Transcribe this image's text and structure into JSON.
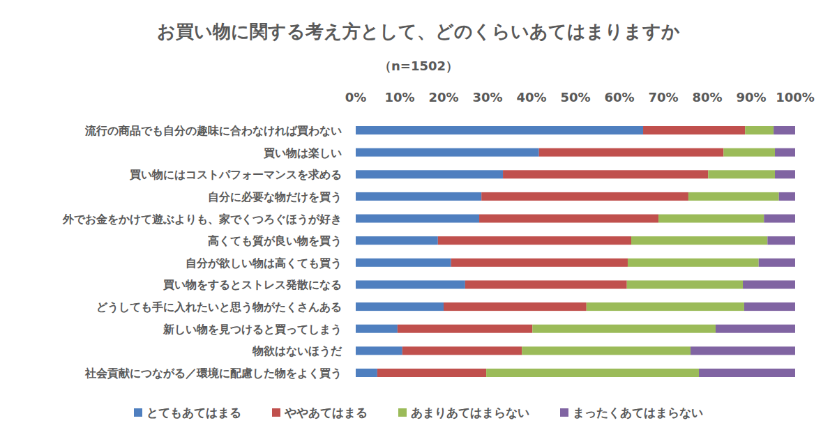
{
  "chart_data": {
    "type": "bar",
    "orientation": "horizontal",
    "stacked": true,
    "grid": false,
    "legend": "bottom",
    "data_labels": false,
    "title": "お買い物に関する考え方として、どのくらいあてはまりますか",
    "subtitle": "（n=1502）",
    "categories": [
      "流行の商品でも自分の趣味に合わなければ買わない",
      "買い物は楽しい",
      "買い物にはコストパフォーマンスを求める",
      "自分に必要な物だけを買う",
      "外でお金をかけて遊ぶよりも、家でくつろぐほうが好き",
      "高くても質が良い物を買う",
      "自分が欲しい物は高くても買う",
      "買い物をするとストレス発散になる",
      "どうしても手に入れたいと思う物がたくさんある",
      "新しい物を見つけると買ってしまう",
      "物欲はないほうだ",
      "社会貢献につながる／環境に配慮した物をよく買う"
    ],
    "xlim": [
      0,
      100
    ],
    "xticks": [
      {
        "value": 0,
        "label": "0%"
      },
      {
        "value": 10,
        "label": "10%"
      },
      {
        "value": 20,
        "label": "20%"
      },
      {
        "value": 30,
        "label": "30%"
      },
      {
        "value": 40,
        "label": "40%"
      },
      {
        "value": 50,
        "label": "50%"
      },
      {
        "value": 60,
        "label": "60%"
      },
      {
        "value": 70,
        "label": "70%"
      },
      {
        "value": 80,
        "label": "80%"
      },
      {
        "value": 90,
        "label": "90%"
      },
      {
        "value": 100,
        "label": "100%"
      }
    ],
    "series": [
      {
        "name": "とてもあてはまる",
        "color": "#4f7fbf",
        "values": [
          65.4,
          41.7,
          33.5,
          28.6,
          28.1,
          18.7,
          21.7,
          24.9,
          20.0,
          9.5,
          10.6,
          4.9
        ]
      },
      {
        "name": "ややあてはまる",
        "color": "#c0504d",
        "values": [
          23.2,
          42.0,
          46.7,
          47.1,
          40.8,
          44.0,
          40.2,
          36.8,
          32.5,
          30.7,
          27.2,
          24.8
        ]
      },
      {
        "name": "あまりあてはまらない",
        "color": "#9bbb59",
        "values": [
          6.5,
          11.7,
          15.2,
          20.6,
          24.0,
          31.0,
          29.8,
          26.4,
          35.9,
          41.7,
          38.4,
          48.4
        ]
      },
      {
        "name": "まったくあてはまらない",
        "color": "#8064a2",
        "values": [
          4.9,
          4.6,
          4.6,
          3.7,
          7.1,
          6.3,
          8.3,
          11.9,
          11.6,
          18.1,
          23.8,
          21.9
        ]
      }
    ]
  }
}
